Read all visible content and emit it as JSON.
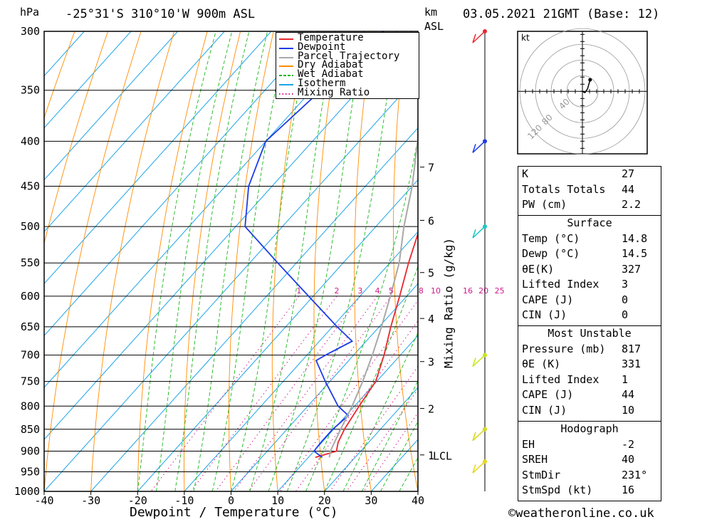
{
  "header": {
    "pressure_unit": "hPa",
    "location": "-25°31'S  310°10'W  900m  ASL",
    "height_unit_top": "km",
    "height_unit_bottom": "ASL",
    "datetime": "03.05.2021  21GMT  (Base: 12)"
  },
  "chart_data": {
    "type": "skew-t",
    "xlabel": "Dewpoint / Temperature (°C)",
    "mixing_ratio_label": "Mixing Ratio (g/kg)",
    "x_ticks": [
      -40,
      -30,
      -20,
      -10,
      0,
      10,
      20,
      30,
      40
    ],
    "x_range": [
      -40,
      40
    ],
    "pressure_ticks": [
      300,
      350,
      400,
      450,
      500,
      550,
      600,
      650,
      700,
      750,
      800,
      850,
      900,
      950,
      1000
    ],
    "pressure_range": [
      300,
      1000
    ],
    "height_ticks": [
      {
        "label": "7",
        "p": 428
      },
      {
        "label": "6",
        "p": 492
      },
      {
        "label": "5",
        "p": 564
      },
      {
        "label": "4",
        "p": 636
      },
      {
        "label": "3",
        "p": 712
      },
      {
        "label": "2",
        "p": 805
      },
      {
        "label": "1",
        "p": 909
      }
    ],
    "lcl_label": "LCL",
    "lcl_pressure": 910,
    "mixing_ratio_values": [
      "1",
      "2",
      "3",
      "4",
      "5",
      "8",
      "10",
      "16",
      "20",
      "25"
    ],
    "series": [
      {
        "name": "Temperature",
        "color": "#e8282f",
        "points": [
          [
            300,
            -32
          ],
          [
            350,
            -25
          ],
          [
            400,
            -18.5
          ],
          [
            450,
            -14
          ],
          [
            500,
            -10.5
          ],
          [
            550,
            -6
          ],
          [
            600,
            -1.5
          ],
          [
            650,
            2.5
          ],
          [
            700,
            6.5
          ],
          [
            750,
            9.8
          ],
          [
            800,
            11
          ],
          [
            850,
            12.3
          ],
          [
            880,
            13.5
          ],
          [
            900,
            14.8
          ],
          [
            915,
            11.5
          ]
        ]
      },
      {
        "name": "Dewpoint",
        "color": "#1e3ce8",
        "points": [
          [
            300,
            -56
          ],
          [
            350,
            -58
          ],
          [
            400,
            -60
          ],
          [
            450,
            -55
          ],
          [
            500,
            -48
          ],
          [
            550,
            -34
          ],
          [
            600,
            -21
          ],
          [
            650,
            -9
          ],
          [
            675,
            -3
          ],
          [
            700,
            -6
          ],
          [
            710,
            -7
          ],
          [
            750,
            -1
          ],
          [
            800,
            6.5
          ],
          [
            820,
            10.5
          ],
          [
            850,
            9.8
          ],
          [
            880,
            9.8
          ],
          [
            900,
            10
          ],
          [
            915,
            13
          ]
        ]
      },
      {
        "name": "Parcel Trajectory",
        "color": "#a9a9a9",
        "points": [
          [
            300,
            -50
          ],
          [
            350,
            -37
          ],
          [
            400,
            -27.5
          ],
          [
            450,
            -20
          ],
          [
            500,
            -14
          ],
          [
            550,
            -8
          ],
          [
            600,
            -3.5
          ],
          [
            650,
            0.5
          ],
          [
            700,
            4
          ],
          [
            750,
            7
          ],
          [
            800,
            9.5
          ],
          [
            850,
            11.5
          ],
          [
            900,
            13.5
          ],
          [
            915,
            14.5
          ]
        ]
      }
    ],
    "legend": {
      "position": "top-right",
      "entries": [
        {
          "label": "Temperature",
          "color": "#e8282f",
          "style": "solid"
        },
        {
          "label": "Dewpoint",
          "color": "#1e3ce8",
          "style": "solid"
        },
        {
          "label": "Parcel Trajectory",
          "color": "#a9a9a9",
          "style": "solid"
        },
        {
          "label": "Dry Adiabat",
          "color": "#ff8c00",
          "style": "solid"
        },
        {
          "label": "Wet Adiabat",
          "color": "#18b818",
          "style": "dashed"
        },
        {
          "label": "Isotherm",
          "color": "#1aa3e8",
          "style": "solid"
        },
        {
          "label": "Mixing Ratio",
          "color": "#d01a8c",
          "style": "dotted"
        }
      ]
    },
    "wind_profile": [
      {
        "p": 300,
        "color": "#e8282f"
      },
      {
        "p": 400,
        "color": "#1e3ce8"
      },
      {
        "p": 500,
        "color": "#1ac8c8"
      },
      {
        "p": 700,
        "color": "#c8e818"
      },
      {
        "p": 850,
        "color": "#d8d818"
      },
      {
        "p": 925,
        "color": "#e8d818"
      }
    ],
    "hodograph": {
      "unit": "kt",
      "ring_labels": [
        "40",
        "80",
        "120"
      ],
      "points": [
        [
          0,
          0
        ],
        [
          4,
          -2
        ],
        [
          8,
          4
        ],
        [
          12,
          18
        ]
      ]
    }
  },
  "indices": [
    {
      "key": "K",
      "value": "27"
    },
    {
      "key": "Totals Totals",
      "value": "44"
    },
    {
      "key": "PW (cm)",
      "value": "2.2"
    }
  ],
  "surface": {
    "title": "Surface",
    "rows": [
      {
        "key": "Temp (°C)",
        "value": "14.8"
      },
      {
        "key": "Dewp (°C)",
        "value": "14.5"
      },
      {
        "key": "θE(K)",
        "value": "327"
      },
      {
        "key": "Lifted Index",
        "value": "3"
      },
      {
        "key": "CAPE (J)",
        "value": "0"
      },
      {
        "key": "CIN (J)",
        "value": "0"
      }
    ]
  },
  "most_unstable": {
    "title": "Most Unstable",
    "rows": [
      {
        "key": "Pressure (mb)",
        "value": "817"
      },
      {
        "key": "θE (K)",
        "value": "331"
      },
      {
        "key": "Lifted Index",
        "value": "1"
      },
      {
        "key": "CAPE (J)",
        "value": "44"
      },
      {
        "key": "CIN (J)",
        "value": "10"
      }
    ]
  },
  "hodograph_table": {
    "title": "Hodograph",
    "rows": [
      {
        "key": "EH",
        "value": "-2"
      },
      {
        "key": "SREH",
        "value": "40"
      },
      {
        "key": "StmDir",
        "value": "231°"
      },
      {
        "key": "StmSpd (kt)",
        "value": "16"
      }
    ]
  },
  "footer": {
    "copyright": "©weatheronline.co.uk"
  }
}
